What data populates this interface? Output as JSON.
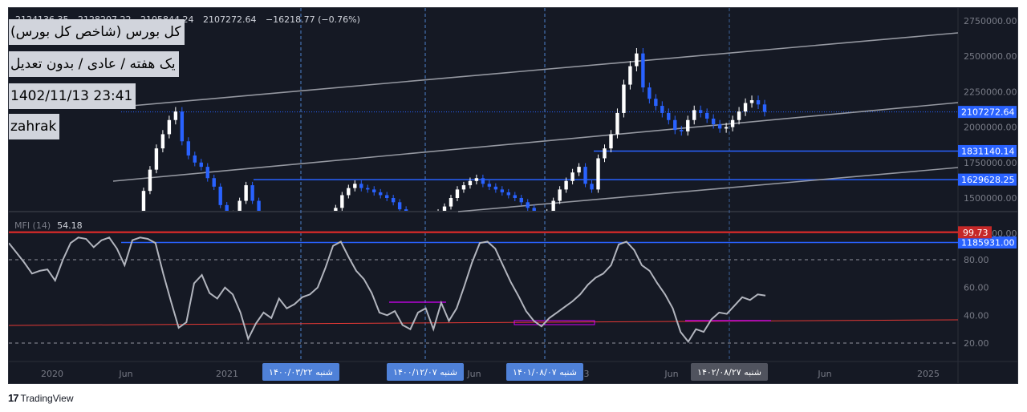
{
  "header": {
    "symbol_title": "کل بورس (شاخص کل بورس)",
    "settings_line": "یک هفته / عادی / بدون تعدیل",
    "datetime": "1402/11/13 23:41",
    "author": "zahrak",
    "ohlc": [
      "2124136.35",
      "2128207.22",
      "2105844.24",
      "2107272.64",
      "−16218.77 (−0.76%)"
    ]
  },
  "chart_data": [
    {
      "type": "candlestick",
      "title": "کل بورس (شاخص کل بورس)",
      "interval": "یک هفته",
      "y_axis": {
        "ticks": [
          "2750000.00",
          "2500000.00",
          "2250000.00",
          "2000000.00",
          "1750000.00",
          "1500000.00",
          "1250000.00"
        ],
        "tick_values": [
          2750000,
          2500000,
          2250000,
          2000000,
          1750000,
          1500000,
          1250000
        ],
        "ylim": [
          1185931,
          2800000
        ],
        "price_labels": [
          {
            "label": "2107272.64",
            "value": 2107272.64,
            "color": "#2962ff"
          },
          {
            "label": "1831140.14",
            "value": 1831140.14,
            "color": "#2962ff"
          },
          {
            "label": "1629628.25",
            "value": 1629628.25,
            "color": "#2962ff"
          },
          {
            "label": "1185931.00",
            "value": 1185931,
            "color": "#2962ff"
          }
        ]
      },
      "horizontal_levels": [
        1831140.14,
        1629628.25,
        1185931
      ],
      "up_color": "#ffffff",
      "down_color": "#2962ff",
      "close_series": [
        1150000,
        1350000,
        1550000,
        1700000,
        1850000,
        1950000,
        2050000,
        2110000,
        1900000,
        1800000,
        1750000,
        1720000,
        1640000,
        1580000,
        1450000,
        1370000,
        1390000,
        1480000,
        1590000,
        1480000,
        1340000,
        1260000,
        1230000,
        1310000,
        1300000,
        1250000,
        1210000,
        1200000,
        1180000,
        1170000,
        1230000,
        1320000,
        1430000,
        1520000,
        1570000,
        1600000,
        1570000,
        1560000,
        1540000,
        1520000,
        1500000,
        1470000,
        1420000,
        1380000,
        1340000,
        1300000,
        1330000,
        1350000,
        1400000,
        1440000,
        1500000,
        1560000,
        1590000,
        1620000,
        1640000,
        1600000,
        1580000,
        1560000,
        1540000,
        1520000,
        1500000,
        1470000,
        1430000,
        1380000,
        1330000,
        1400000,
        1480000,
        1560000,
        1620000,
        1680000,
        1720000,
        1600000,
        1560000,
        1780000,
        1850000,
        1950000,
        2100000,
        2300000,
        2430000,
        2520000,
        2280000,
        2200000,
        2150000,
        2100000,
        2050000,
        1980000,
        1970000,
        2050000,
        2120000,
        2100000,
        2060000,
        2020000,
        1990000,
        2000000,
        2050000,
        2110000,
        2170000,
        2190000,
        2160000,
        2107272.64
      ]
    },
    {
      "type": "line",
      "indicator_label": "MFI (14)",
      "current_value": "54.18",
      "y_axis": {
        "ticks": [
          "80.00",
          "60.00",
          "40.00",
          "20.00"
        ],
        "tick_values": [
          80,
          60,
          40,
          20
        ],
        "ylim": [
          0,
          105
        ]
      },
      "highlight_level": {
        "label": "99.73",
        "value": 99.73,
        "color": "#c62828"
      },
      "dashed_levels": [
        80,
        20
      ],
      "values": [
        92,
        85,
        78,
        70,
        72,
        73,
        65,
        80,
        92,
        96,
        95,
        89,
        94,
        96,
        88,
        76,
        94,
        96,
        95,
        92,
        70,
        50,
        31,
        35,
        63,
        69,
        56,
        52,
        60,
        55,
        42,
        23,
        34,
        42,
        38,
        52,
        45,
        48,
        53,
        55,
        60,
        74,
        90,
        93,
        82,
        72,
        66,
        56,
        42,
        40,
        43,
        33,
        30,
        42,
        45,
        30,
        49,
        36,
        45,
        61,
        78,
        92,
        93,
        88,
        76,
        64,
        54,
        43,
        36,
        32,
        38,
        42,
        46,
        50,
        55,
        62,
        67,
        70,
        76,
        91,
        93,
        87,
        76,
        72,
        63,
        55,
        45,
        28,
        21,
        30,
        28,
        37,
        42,
        41,
        47,
        53,
        51,
        55,
        54.18
      ]
    }
  ],
  "x_axis": {
    "ticks": [
      "2020",
      "Jun",
      "2021",
      "Jun",
      "Jun",
      "3",
      "Jun",
      "Jun",
      "2025"
    ]
  },
  "markers": [
    {
      "label": "شنبه ۱۴۰۰/۰۳/۲۲"
    },
    {
      "label": "شنبه ۱۴۰۰/۱۲/۰۷"
    },
    {
      "label": "شنبه ۱۴۰۱/۰۸/۰۷"
    },
    {
      "label": "شنبه ۱۴۰۲/۰۸/۲۷"
    }
  ],
  "footer": {
    "logo": "TradingView"
  }
}
